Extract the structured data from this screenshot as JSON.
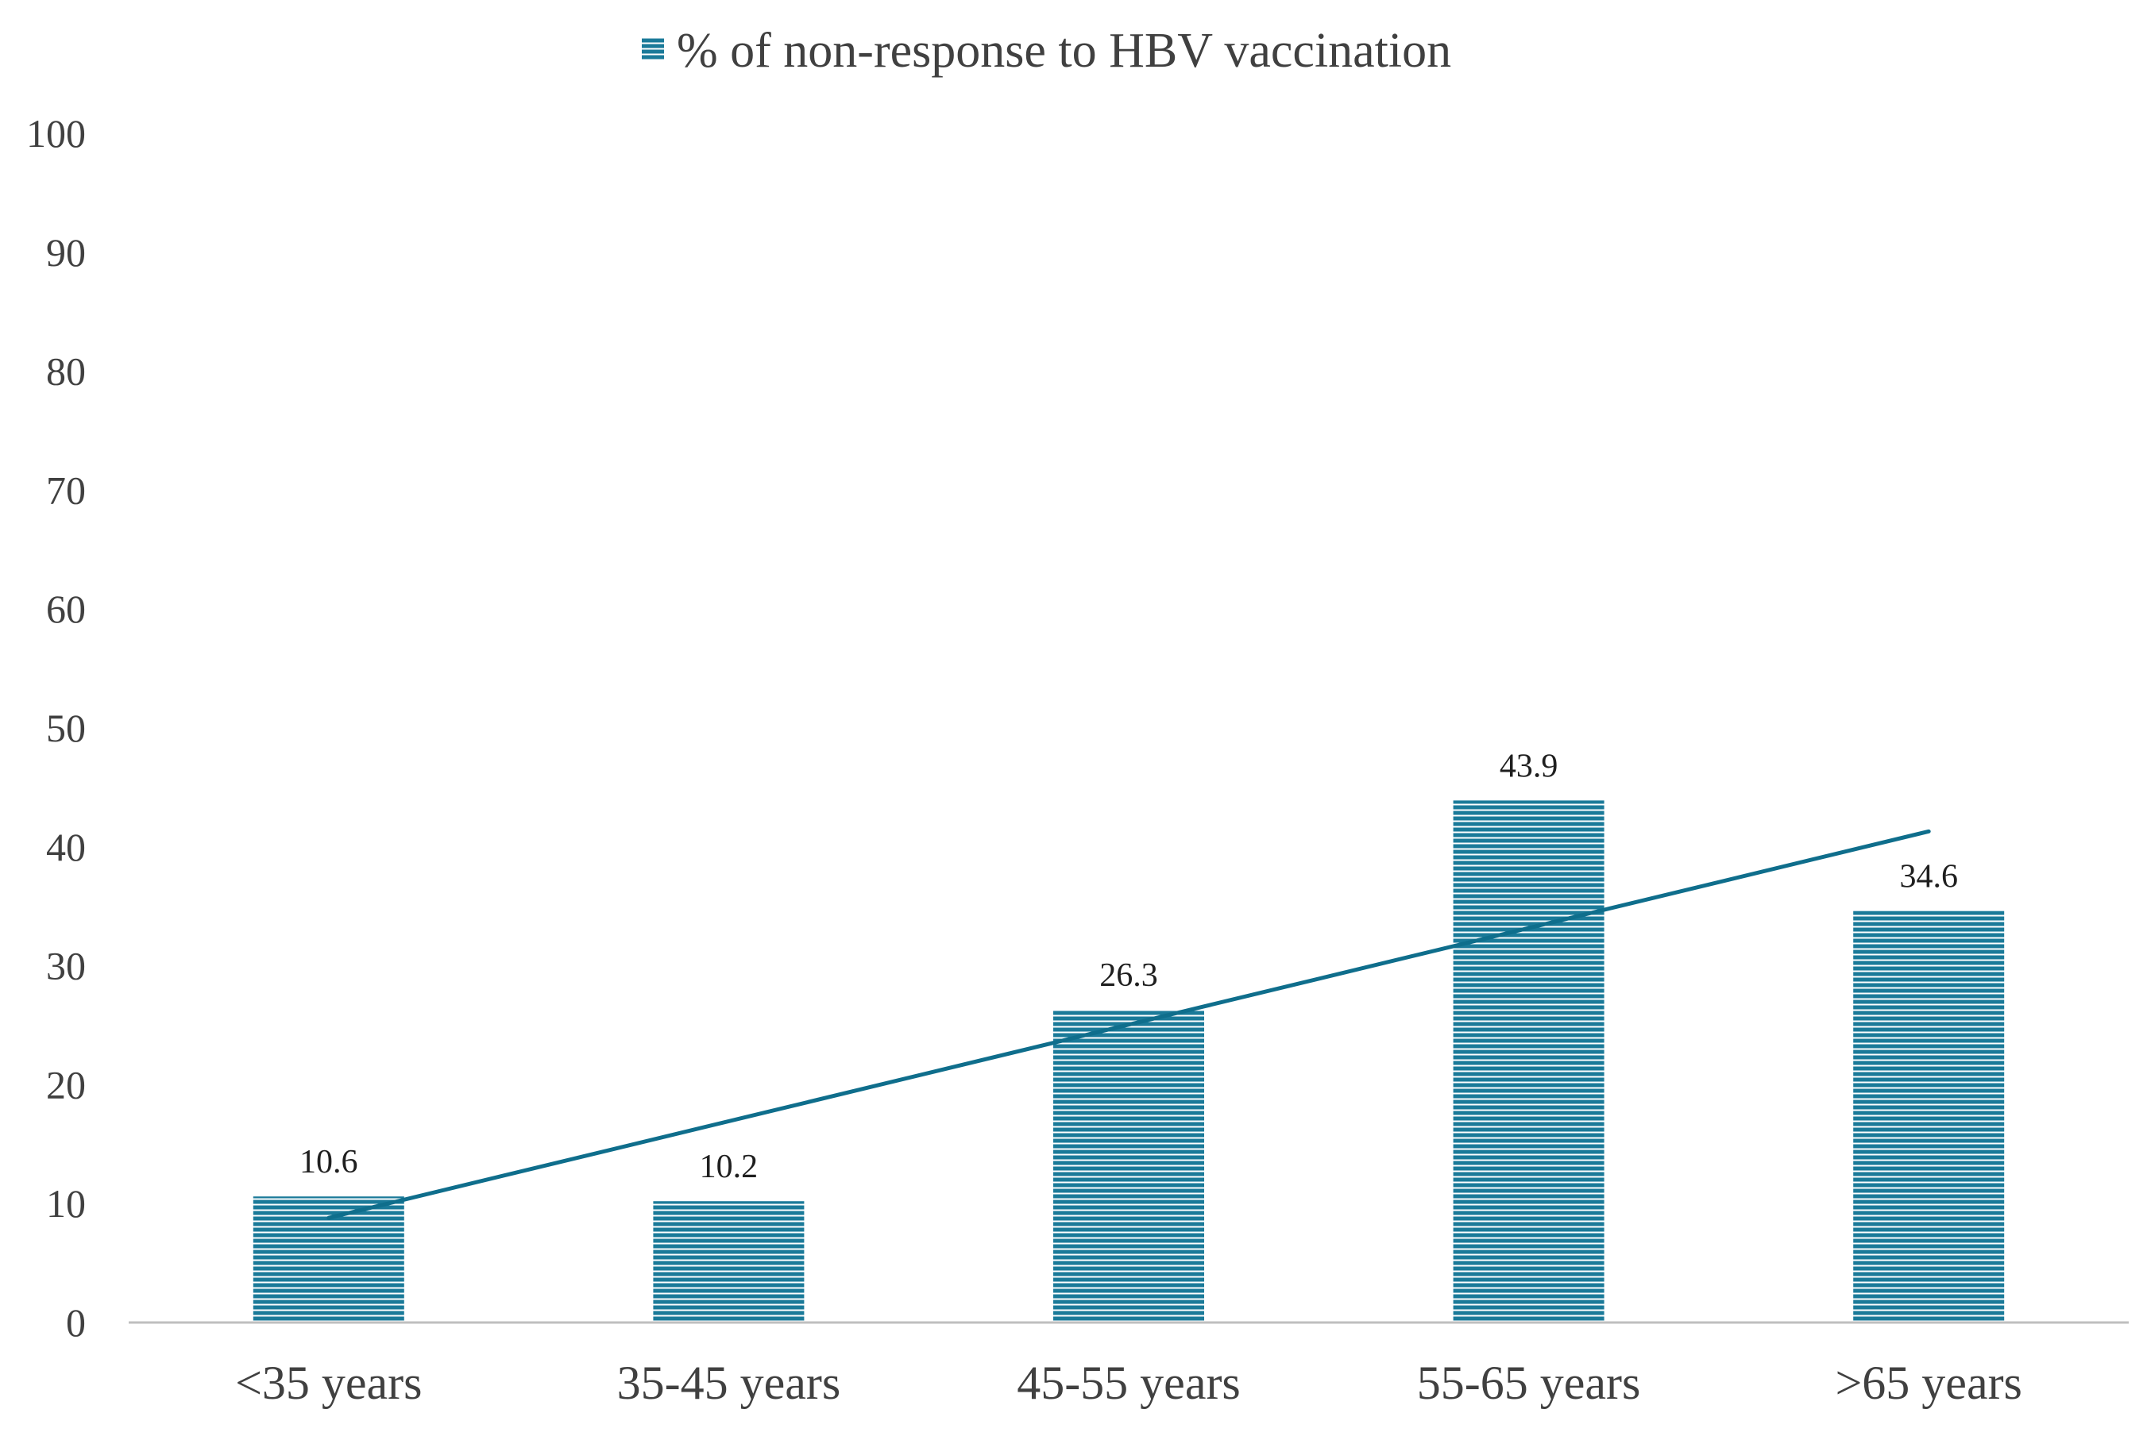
{
  "chart_data": {
    "type": "bar",
    "categories": [
      "<35 years",
      "35-45 years",
      "45-55 years",
      "55-65 years",
      ">65 years"
    ],
    "series": [
      {
        "name": "% of non-response to HBV vaccination",
        "values": [
          10.6,
          10.2,
          26.3,
          43.9,
          34.6
        ],
        "data_labels": [
          "10.6",
          "10.2",
          "26.3",
          "43.9",
          "34.6"
        ]
      }
    ],
    "trendline": {
      "type": "linear",
      "start": 8.8,
      "end": 41.3
    },
    "ylim": [
      0,
      100
    ],
    "yticks": [
      "0",
      "10",
      "20",
      "30",
      "40",
      "50",
      "60",
      "70",
      "80",
      "90",
      "100"
    ],
    "gridlines": false,
    "legend_position": "top-center",
    "bar_color": "#1a7a99",
    "bar_stripe_color": "#ffffff",
    "trendline_color": "#0f6e8c",
    "axis_color": "#bfbfbf"
  }
}
